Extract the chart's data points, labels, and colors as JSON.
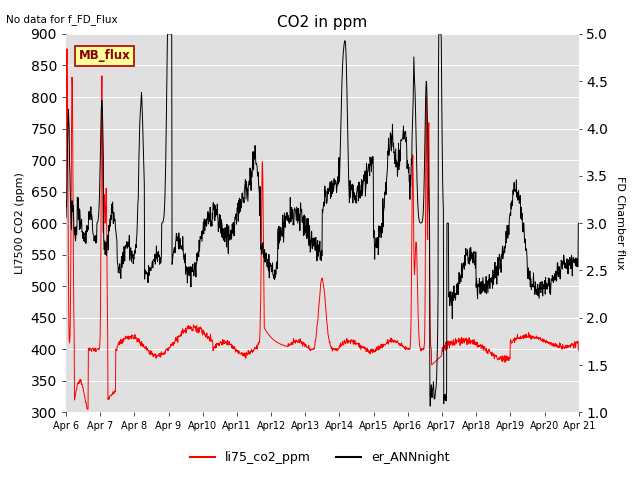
{
  "title": "CO2 in ppm",
  "top_left_text": "No data for f_FD_Flux",
  "ylabel_left": "LI7500 CO2 (ppm)",
  "ylabel_right": "FD Chamber flux",
  "ylim_left": [
    300,
    900
  ],
  "ylim_right": [
    1.0,
    5.0
  ],
  "yticks_left": [
    300,
    350,
    400,
    450,
    500,
    550,
    600,
    650,
    700,
    750,
    800,
    850,
    900
  ],
  "yticks_right": [
    1.0,
    1.5,
    2.0,
    2.5,
    3.0,
    3.5,
    4.0,
    4.5,
    5.0
  ],
  "xlabel_dates": [
    "Apr 6",
    "Apr 7",
    "Apr 8",
    "Apr 9",
    "Apr10",
    "Apr11",
    "Apr12",
    "Apr13",
    "Apr14",
    "Apr15",
    "Apr16",
    "Apr17",
    "Apr18",
    "Apr19",
    "Apr20",
    "Apr 21"
  ],
  "legend_entries": [
    "li75_co2_ppm",
    "er_ANNnight"
  ],
  "legend_colors": [
    "red",
    "black"
  ],
  "mb_flux_label": "MB_flux",
  "plot_bg_color": "#e0e0e0",
  "line_color_red": "red",
  "line_color_black": "black"
}
